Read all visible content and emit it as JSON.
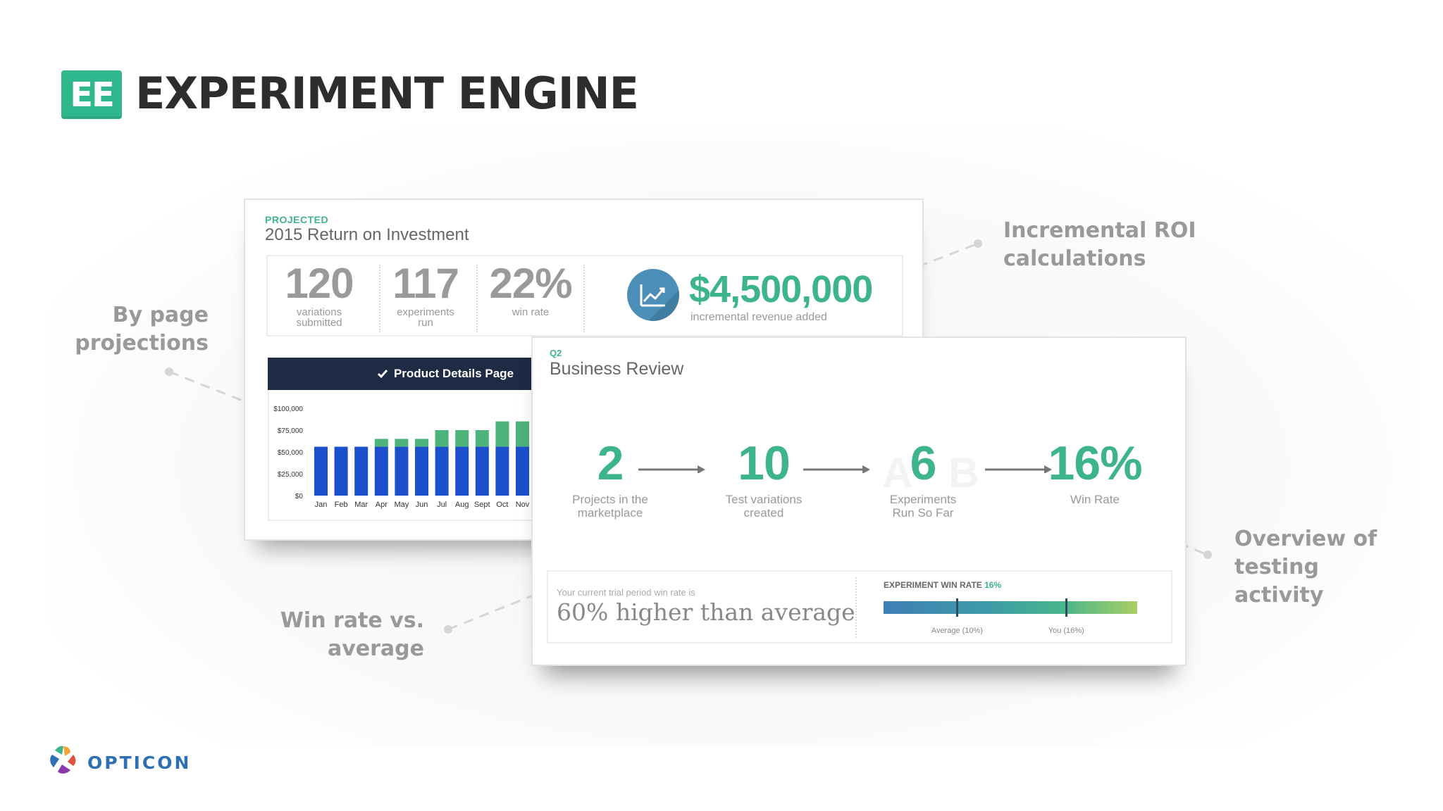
{
  "header": {
    "logo_text": "EE",
    "title": "EXPERIMENT ENGINE",
    "logo_color": "#2fb88e"
  },
  "callouts": {
    "roi": [
      "Incremental ROI",
      "calculations"
    ],
    "by_page": [
      "By page",
      "projections"
    ],
    "testing": [
      "Overview of",
      "testing",
      "activity"
    ],
    "win_rate": [
      "Win rate vs.",
      "average"
    ]
  },
  "roi_card": {
    "eyebrow": "PROJECTED",
    "title": "2015 Return on Investment",
    "stats": [
      {
        "value": "120",
        "label_lines": [
          "variations",
          "submitted"
        ]
      },
      {
        "value": "117",
        "label_lines": [
          "experiments",
          "run"
        ]
      },
      {
        "value": "22%",
        "label_lines": [
          "win rate"
        ]
      }
    ],
    "revenue_icon": "line-chart-icon",
    "revenue_amount": "$4,500,000",
    "revenue_label": "incremental revenue added",
    "panel_title": "Product Details Page",
    "panel_check_icon": "checkmark-icon"
  },
  "chart_data": {
    "type": "bar",
    "categories": [
      "Jan",
      "Feb",
      "Mar",
      "Apr",
      "May",
      "Jun",
      "Jul",
      "Aug",
      "Sept",
      "Oct",
      "Nov"
    ],
    "series": [
      {
        "values": [
          56000,
          56000,
          56000,
          56000,
          56000,
          56000,
          56000,
          56000,
          56000,
          56000,
          56000
        ],
        "color": "#1b4fcc"
      },
      {
        "values": [
          0,
          0,
          0,
          9000,
          9000,
          9000,
          19000,
          19000,
          19000,
          29000,
          29000
        ],
        "color": "#4cb37a"
      }
    ],
    "ylim": [
      0,
      100000
    ],
    "y_ticks": [
      "$0",
      "$25,000",
      "$50,000",
      "$75,000",
      "$100,000"
    ],
    "stacked": true,
    "grid": false
  },
  "review_card": {
    "eyebrow": "Q2",
    "title": "Business Review",
    "metrics": [
      {
        "value": "2",
        "label_lines": [
          "Projects in the",
          "marketplace"
        ]
      },
      {
        "value": "10",
        "label_lines": [
          "Test variations",
          "created"
        ]
      },
      {
        "value": "6",
        "label_lines": [
          "Experiments",
          "Run So Far"
        ]
      },
      {
        "value": "16%",
        "label_lines": [
          "Win Rate"
        ]
      }
    ],
    "ghost_letters": [
      "A",
      "B"
    ],
    "win_rate_small": "Your current trial period win rate is",
    "win_rate_big": "60% higher than average",
    "bar_title": "EXPERIMENT WIN RATE",
    "bar_title_value": "16%",
    "average_label": "Average (10%)",
    "you_label": "You (16%)",
    "average_marker": 0.29,
    "you_marker": 0.72
  },
  "footer": {
    "brand": "OPTICON",
    "brand_color": "#2e6fb3"
  }
}
